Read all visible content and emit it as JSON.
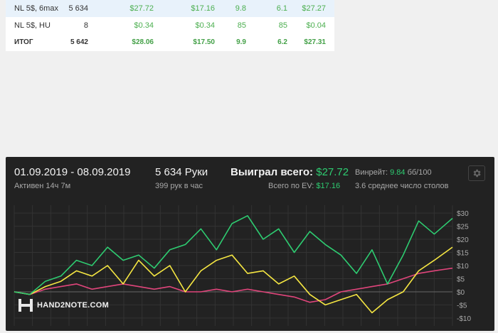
{
  "table": {
    "rows": [
      {
        "name": "NL 5$, 6max",
        "hands": "5 634",
        "v1": "$27.72",
        "v2": "$17.16",
        "v3": "9.8",
        "v4": "6.1",
        "v5": "$27.27"
      },
      {
        "name": "NL 5$, HU",
        "hands": "8",
        "v1": "$0.34",
        "v2": "$0.34",
        "v3": "85",
        "v4": "85",
        "v5": "$0.04"
      }
    ],
    "total": {
      "name": "ИТОГ",
      "hands": "5 642",
      "v1": "$28.06",
      "v2": "$17.50",
      "v3": "9.9",
      "v4": "6.2",
      "v5": "$27.31"
    }
  },
  "summary": {
    "date_range": "01.09.2019 - 08.09.2019",
    "active": "Активен 14ч 7м",
    "hands": "5 634 Руки",
    "hands_per_hour": "399 рук в час",
    "won_label": "Выиграл всего:",
    "won_value": "$27.72",
    "ev_label": "Всего по EV:",
    "ev_value": "$17.16",
    "winrate_label": "Винрейт:",
    "winrate_value": "9.84",
    "winrate_unit": "бб/100",
    "avg_tables": "3.6 среднее число столов",
    "settings_icon": "gear-icon"
  },
  "logo": {
    "text": "HAND2NOTE.COM"
  },
  "colors": {
    "green": "#2ecc71",
    "yellow": "#f5e642",
    "pink": "#e0457b",
    "panel": "#222222"
  },
  "chart_data": {
    "type": "line",
    "x_range": [
      0,
      5634
    ],
    "ylim": [
      -13,
      33
    ],
    "y_ticks": [
      -10,
      -5,
      0,
      5,
      10,
      15,
      20,
      25,
      30
    ],
    "y_tick_labels": [
      "-$10",
      "-$5",
      "$0",
      "$5",
      "$10",
      "$15",
      "$20",
      "$25",
      "$30"
    ],
    "grid": true,
    "series": [
      {
        "color": "#2ecc71",
        "x": [
          0,
          200,
          400,
          600,
          800,
          1000,
          1200,
          1400,
          1600,
          1800,
          2000,
          2200,
          2400,
          2600,
          2800,
          3000,
          3200,
          3400,
          3600,
          3800,
          4000,
          4200,
          4400,
          4600,
          4800,
          5000,
          5200,
          5400,
          5634
        ],
        "values": [
          0,
          -1,
          4,
          6,
          12,
          10,
          17,
          12,
          14,
          9,
          16,
          18,
          24,
          16,
          26,
          29,
          20,
          24,
          15,
          23,
          18,
          14,
          7,
          16,
          3,
          14,
          27,
          22,
          28
        ]
      },
      {
        "color": "#f5e642",
        "x": [
          0,
          200,
          400,
          600,
          800,
          1000,
          1200,
          1400,
          1600,
          1800,
          2000,
          2200,
          2400,
          2600,
          2800,
          3000,
          3200,
          3400,
          3600,
          3800,
          4000,
          4200,
          4400,
          4600,
          4800,
          5000,
          5200,
          5400,
          5634
        ],
        "values": [
          0,
          -1,
          2,
          4,
          8,
          6,
          10,
          3,
          12,
          6,
          10,
          0,
          8,
          12,
          14,
          7,
          8,
          3,
          6,
          -1,
          -5,
          -3,
          -1,
          -8,
          -3,
          0,
          8,
          12,
          17
        ]
      },
      {
        "color": "#e0457b",
        "x": [
          0,
          200,
          400,
          600,
          800,
          1000,
          1200,
          1400,
          1600,
          1800,
          2000,
          2200,
          2400,
          2600,
          2800,
          3000,
          3200,
          3400,
          3600,
          3800,
          4000,
          4200,
          4400,
          4600,
          4800,
          5000,
          5200,
          5400,
          5634
        ],
        "values": [
          0,
          -1,
          1,
          2,
          3,
          1,
          2,
          3,
          2,
          1,
          2,
          0,
          0,
          1,
          0,
          1,
          0,
          -1,
          -2,
          -4,
          -3,
          0,
          1,
          2,
          3,
          5,
          7,
          8,
          9
        ]
      }
    ]
  }
}
